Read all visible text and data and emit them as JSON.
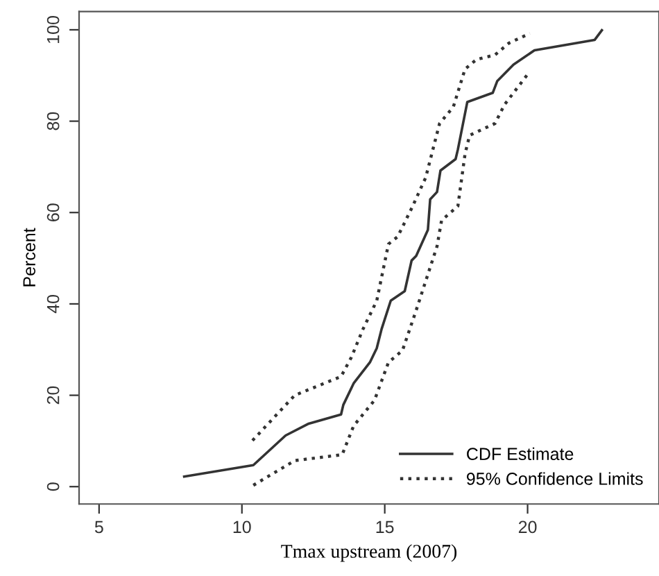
{
  "chart_data": {
    "type": "line",
    "xlabel": "Tmax upstream (2007)",
    "ylabel": "Percent",
    "xlim": [
      4.3,
      24.6
    ],
    "ylim": [
      -3.8,
      104
    ],
    "xticks": [
      5,
      10,
      15,
      20
    ],
    "yticks": [
      0,
      20,
      40,
      60,
      80,
      100
    ],
    "grid": false,
    "legend": "bottom right",
    "marker": "none",
    "series": [
      {
        "name": "CDF Estimate",
        "color": "#333333",
        "line_style": "solid",
        "x": [
          7.98,
          10.4,
          11.53,
          12.34,
          13.47,
          13.55,
          13.91,
          14.48,
          14.72,
          14.89,
          15.21,
          15.7,
          15.94,
          16.1,
          16.51,
          16.59,
          16.83,
          16.95,
          17.48,
          17.56,
          17.89,
          18.78,
          18.94,
          19.51,
          20.24,
          22.35,
          22.6
        ],
        "values": [
          2.2,
          4.7,
          11.2,
          13.8,
          15.8,
          17.9,
          22.6,
          27.2,
          30.3,
          34.5,
          40.7,
          42.8,
          49.5,
          50.5,
          56.2,
          62.9,
          64.5,
          69.2,
          71.7,
          73.8,
          84.2,
          86.2,
          88.8,
          92.4,
          95.5,
          97.8,
          99.9
        ]
      },
      {
        "name": "95% Confidence Limits",
        "color": "#333333",
        "line_style": "dotted",
        "x": [
          10.37,
          11.85,
          13.47,
          13.83,
          14.24,
          14.72,
          15.13,
          15.45,
          15.94,
          16.43,
          16.92,
          17.4,
          17.81,
          18.21,
          18.86,
          19.35,
          20.08
        ],
        "values": [
          10.1,
          20.0,
          24.1,
          28.3,
          34.5,
          40.7,
          53.1,
          54.7,
          60.9,
          67.6,
          79.5,
          83.1,
          91.4,
          93.5,
          94.5,
          97.1,
          99.2
        ]
      },
      {
        "color": "#333333",
        "line_style": "dotted",
        "x": [
          10.4,
          11.85,
          13.51,
          13.91,
          14.64,
          15.13,
          15.62,
          16.1,
          16.83,
          16.99,
          17.56,
          17.81,
          17.97,
          18.86,
          19.19,
          20.08
        ],
        "values": [
          0.3,
          5.7,
          7.0,
          13.3,
          18.9,
          27.2,
          29.8,
          38.6,
          52.6,
          58.3,
          61.4,
          72.8,
          76.9,
          79.5,
          83.6,
          90.9
        ]
      }
    ]
  }
}
